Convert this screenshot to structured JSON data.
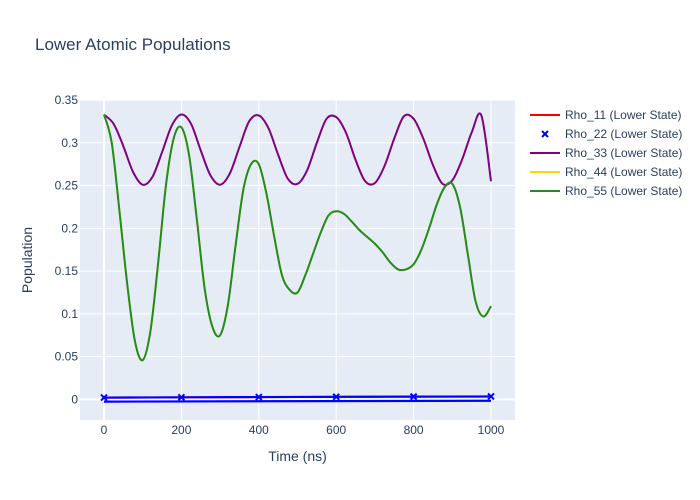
{
  "chart_data": {
    "type": "line",
    "title": "Lower Atomic Populations",
    "xlabel": "Time (ns)",
    "ylabel": "Population",
    "xlim": [
      -62,
      1062
    ],
    "ylim": [
      -0.024,
      0.35
    ],
    "xticks": [
      0,
      200,
      400,
      600,
      800,
      1000
    ],
    "yticks": [
      0,
      0.05,
      0.1,
      0.15,
      0.2,
      0.25,
      0.3,
      0.35
    ],
    "xtick_labels": [
      "0",
      "200",
      "400",
      "600",
      "800",
      "1000"
    ],
    "ytick_labels": [
      "0",
      "0.05",
      "0.1",
      "0.15",
      "0.2",
      "0.25",
      "0.3",
      "0.35"
    ],
    "grid": true,
    "legend_position": "right",
    "series": [
      {
        "name": "Rho_11 (Lower State)",
        "color": "#ff0000",
        "mode": "line",
        "x": [
          0,
          200,
          400,
          600,
          800,
          1000
        ],
        "y": [
          0.002,
          0.0024,
          0.0027,
          0.003,
          0.0033,
          0.0035
        ]
      },
      {
        "name": "Rho_22 (Lower State)",
        "color": "#0000ff",
        "mode": "markers",
        "x": [
          0,
          200,
          400,
          600,
          800,
          1000
        ],
        "y": [
          0.0022,
          0.0025,
          0.0028,
          0.0031,
          0.0033,
          0.0035
        ]
      },
      {
        "name": "Rho_33 (Lower State)",
        "color": "#800080",
        "mode": "line",
        "x": [
          0,
          25,
          50,
          75,
          100,
          125,
          150,
          175,
          200,
          225,
          250,
          275,
          300,
          325,
          350,
          375,
          400,
          425,
          450,
          475,
          500,
          525,
          550,
          575,
          600,
          625,
          650,
          675,
          700,
          725,
          750,
          775,
          800,
          825,
          850,
          875,
          900,
          925,
          950,
          975,
          1000
        ],
        "y": [
          0.333,
          0.322,
          0.296,
          0.266,
          0.251,
          0.26,
          0.289,
          0.32,
          0.333,
          0.322,
          0.291,
          0.262,
          0.251,
          0.264,
          0.295,
          0.325,
          0.332,
          0.317,
          0.286,
          0.258,
          0.252,
          0.268,
          0.3,
          0.328,
          0.33,
          0.312,
          0.28,
          0.255,
          0.253,
          0.273,
          0.305,
          0.331,
          0.328,
          0.305,
          0.274,
          0.252,
          0.256,
          0.28,
          0.312,
          0.332,
          0.255
        ]
      },
      {
        "name": "Rho_44 (Lower State)",
        "color": "#ffd700",
        "mode": "line",
        "x": [
          0,
          20,
          40,
          60,
          80,
          100,
          120,
          140,
          160,
          180,
          200,
          220,
          240,
          260,
          280,
          300,
          320,
          340,
          360,
          380,
          400,
          420,
          440,
          460,
          480,
          500,
          520,
          540,
          560,
          580,
          600,
          620,
          640,
          660,
          680,
          700,
          720,
          740,
          760,
          780,
          800,
          820,
          840,
          860,
          880,
          900,
          920,
          940,
          960,
          980,
          1000
        ],
        "y": [
          0.333,
          0.3,
          0.22,
          0.135,
          0.068,
          0.046,
          0.08,
          0.16,
          0.25,
          0.305,
          0.318,
          0.285,
          0.21,
          0.13,
          0.085,
          0.075,
          0.11,
          0.18,
          0.245,
          0.275,
          0.275,
          0.24,
          0.19,
          0.145,
          0.128,
          0.125,
          0.145,
          0.17,
          0.195,
          0.215,
          0.22,
          0.217,
          0.208,
          0.198,
          0.19,
          0.182,
          0.172,
          0.16,
          0.152,
          0.152,
          0.158,
          0.175,
          0.2,
          0.228,
          0.248,
          0.252,
          0.225,
          0.17,
          0.115,
          0.097,
          0.109
        ]
      },
      {
        "name": "Rho_55 (Lower State)",
        "color": "#228b22",
        "mode": "line",
        "x": [
          0,
          20,
          40,
          60,
          80,
          100,
          120,
          140,
          160,
          180,
          200,
          220,
          240,
          260,
          280,
          300,
          320,
          340,
          360,
          380,
          400,
          420,
          440,
          460,
          480,
          500,
          520,
          540,
          560,
          580,
          600,
          620,
          640,
          660,
          680,
          700,
          720,
          740,
          760,
          780,
          800,
          820,
          840,
          860,
          880,
          900,
          920,
          940,
          960,
          980,
          1000
        ],
        "y": [
          0.333,
          0.3,
          0.22,
          0.135,
          0.068,
          0.046,
          0.08,
          0.16,
          0.25,
          0.305,
          0.318,
          0.285,
          0.21,
          0.13,
          0.085,
          0.075,
          0.11,
          0.18,
          0.245,
          0.275,
          0.275,
          0.24,
          0.19,
          0.145,
          0.128,
          0.125,
          0.145,
          0.17,
          0.195,
          0.215,
          0.22,
          0.217,
          0.208,
          0.198,
          0.19,
          0.182,
          0.172,
          0.16,
          0.152,
          0.152,
          0.158,
          0.175,
          0.2,
          0.228,
          0.248,
          0.252,
          0.225,
          0.17,
          0.115,
          0.097,
          0.109
        ]
      }
    ],
    "extra_lines": [
      {
        "color": "#0000ff",
        "x": [
          0,
          1000
        ],
        "y": [
          -0.0025,
          -0.0015
        ]
      }
    ]
  }
}
